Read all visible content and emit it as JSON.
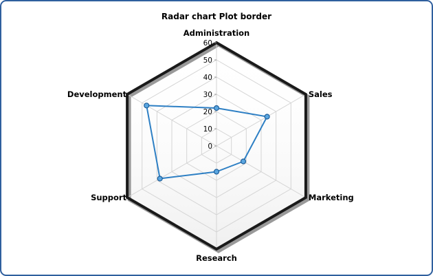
{
  "chart_data": {
    "type": "radar",
    "title": "Radar chart Plot border",
    "axes": [
      "Administration",
      "Sales",
      "Marketing",
      "Research",
      "Support",
      "Development"
    ],
    "series": [
      {
        "values": [
          22,
          34,
          18,
          15,
          38,
          47
        ]
      }
    ],
    "radial_ticks": [
      "0",
      "10",
      "20",
      "30",
      "40",
      "50",
      "60"
    ],
    "rlim": [
      0,
      60
    ],
    "grid": true,
    "colors": {
      "series_line": "#2d7fc4",
      "marker_fill": "#5aa6e0",
      "marker_stroke": "#1f5f9a",
      "plot_border": "#1a1a1a",
      "plot_border_shadow": "#9a9a9a",
      "grid": "#d4d4d4",
      "frame": "#2f5f9e"
    }
  }
}
